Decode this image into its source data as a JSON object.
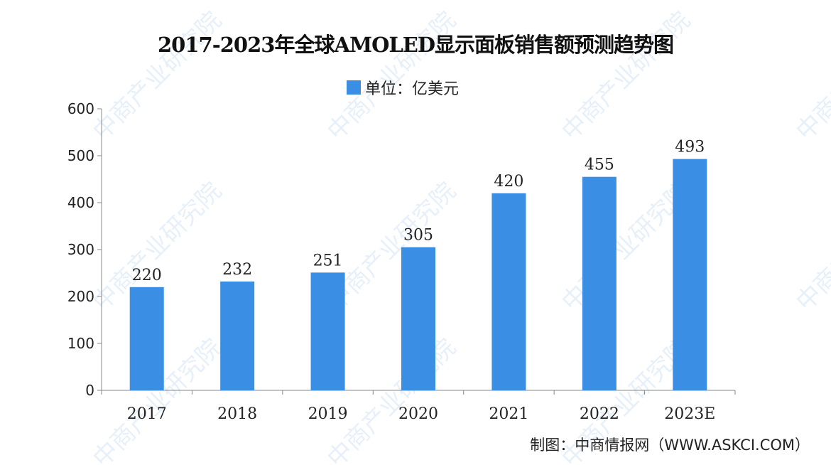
{
  "chart_data": {
    "type": "bar",
    "title": "2017-2023年全球AMOLED显示面板销售额预测趋势图",
    "legend": "单位：亿美元",
    "legend_placement": "top-center",
    "categories": [
      "2017",
      "2018",
      "2019",
      "2020",
      "2021",
      "2022",
      "2023E"
    ],
    "values": [
      220,
      232,
      251,
      305,
      420,
      455,
      493
    ],
    "ylim": [
      0,
      600
    ],
    "yticks": [
      0,
      100,
      200,
      300,
      400,
      500,
      600
    ],
    "grid": false,
    "bar_color": "#3a8fe4"
  },
  "source": "制图：中商情报网（WWW.ASKCI.COM）",
  "watermark": "中商产业研究院"
}
